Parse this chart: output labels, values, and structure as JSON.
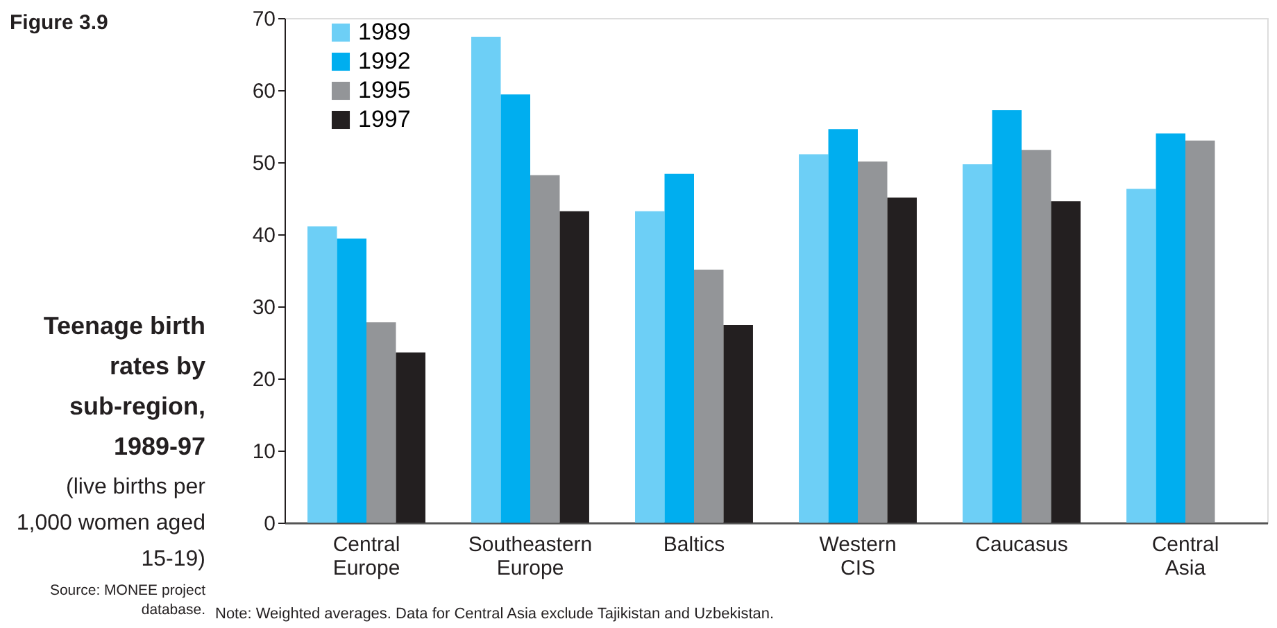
{
  "chart_data": {
    "type": "bar",
    "title": "Teenage birth rates by sub-region, 1989-97",
    "subtitle": "(live births per 1,000 women aged 15-19)",
    "annotations": [
      "Figure 3.9",
      "Source: MONEE project database.",
      "Note: Weighted averages. Data for Central Asia exclude Tajikistan and Uzbekistan."
    ],
    "categories": [
      "Central Europe",
      "Southeastern Europe",
      "Baltics",
      "Western CIS",
      "Caucasus",
      "Central Asia"
    ],
    "series": [
      {
        "name": "1989",
        "color": "#6dcff6",
        "values": [
          41.1,
          67.4,
          43.2,
          51.1,
          49.7,
          46.3
        ]
      },
      {
        "name": "1992",
        "color": "#00aeef",
        "values": [
          39.4,
          59.4,
          48.4,
          54.6,
          57.2,
          54.0
        ]
      },
      {
        "name": "1995",
        "color": "#939598",
        "values": [
          27.8,
          48.2,
          35.1,
          50.1,
          51.7,
          53.0
        ]
      },
      {
        "name": "1997",
        "color": "#231f20",
        "values": [
          23.6,
          43.2,
          27.4,
          45.1,
          44.6,
          null
        ]
      }
    ],
    "ylim": [
      0,
      70
    ],
    "yticks": [
      0,
      10,
      20,
      30,
      40,
      50,
      60,
      70
    ],
    "grid": false,
    "legend": "top left"
  }
}
